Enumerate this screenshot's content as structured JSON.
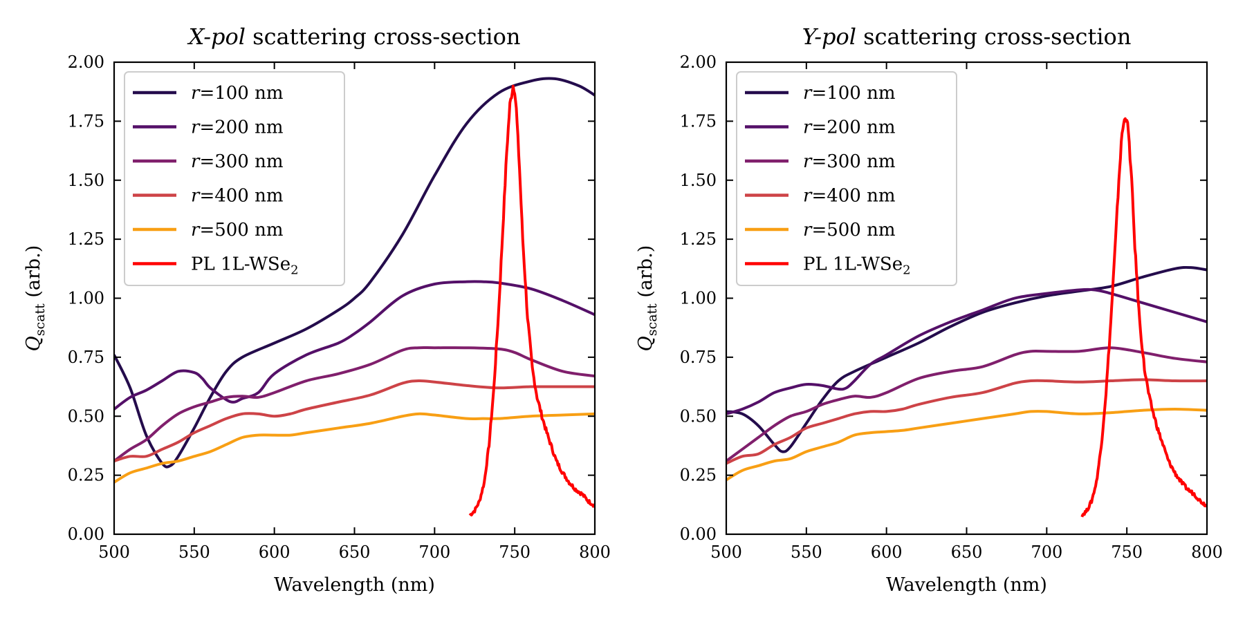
{
  "chart_data": [
    {
      "type": "line",
      "title_prefix": "X-pol",
      "title_rest": " scattering cross-section",
      "xlabel": "Wavelength (nm)",
      "ylabel": "Q_scatt (arb.)",
      "ylabel_symbol": "Q",
      "ylabel_sub": "scatt",
      "ylabel_rest": " (arb.)",
      "xlim": [
        500,
        800
      ],
      "ylim": [
        0,
        2.0
      ],
      "xticks": [
        500,
        550,
        600,
        650,
        700,
        750,
        800
      ],
      "yticks": [
        "0.00",
        "0.25",
        "0.50",
        "0.75",
        "1.00",
        "1.25",
        "1.50",
        "1.75",
        "2.00"
      ],
      "legend_position": "top-left",
      "series": [
        {
          "name": "r=100 nm",
          "legend_var": "r",
          "legend_rest": "=100 nm",
          "color": "#240c4c",
          "x": [
            500,
            510,
            520,
            530,
            535,
            540,
            550,
            560,
            570,
            580,
            600,
            620,
            640,
            650,
            660,
            680,
            700,
            720,
            740,
            760,
            775,
            790,
            800
          ],
          "y": [
            0.76,
            0.62,
            0.42,
            0.3,
            0.29,
            0.33,
            0.45,
            0.58,
            0.69,
            0.75,
            0.81,
            0.87,
            0.95,
            1.0,
            1.07,
            1.27,
            1.52,
            1.74,
            1.87,
            1.92,
            1.93,
            1.9,
            1.86
          ]
        },
        {
          "name": "r=200 nm",
          "legend_var": "r",
          "legend_rest": "=200 nm",
          "color": "#541068",
          "x": [
            500,
            510,
            520,
            530,
            540,
            550,
            555,
            560,
            570,
            575,
            580,
            590,
            600,
            620,
            640,
            650,
            660,
            680,
            700,
            720,
            730,
            740,
            760,
            780,
            800
          ],
          "y": [
            0.53,
            0.58,
            0.61,
            0.65,
            0.69,
            0.685,
            0.66,
            0.62,
            0.57,
            0.56,
            0.575,
            0.6,
            0.68,
            0.76,
            0.81,
            0.85,
            0.9,
            1.01,
            1.06,
            1.07,
            1.07,
            1.065,
            1.04,
            0.99,
            0.93
          ]
        },
        {
          "name": "r=300 nm",
          "legend_var": "r",
          "legend_rest": "=300 nm",
          "color": "#801f6c",
          "x": [
            500,
            510,
            520,
            530,
            540,
            550,
            560,
            570,
            580,
            590,
            600,
            620,
            640,
            660,
            680,
            690,
            700,
            720,
            740,
            750,
            760,
            780,
            800
          ],
          "y": [
            0.31,
            0.36,
            0.4,
            0.46,
            0.51,
            0.54,
            0.56,
            0.58,
            0.585,
            0.58,
            0.6,
            0.65,
            0.68,
            0.72,
            0.78,
            0.79,
            0.79,
            0.79,
            0.785,
            0.77,
            0.74,
            0.69,
            0.67
          ]
        },
        {
          "name": "r=400 nm",
          "legend_var": "r",
          "legend_rest": "=400 nm",
          "color": "#cd4347",
          "x": [
            500,
            510,
            520,
            530,
            540,
            550,
            560,
            570,
            580,
            590,
            600,
            610,
            620,
            640,
            660,
            680,
            690,
            700,
            720,
            740,
            760,
            780,
            800
          ],
          "y": [
            0.31,
            0.33,
            0.33,
            0.36,
            0.39,
            0.43,
            0.46,
            0.49,
            0.51,
            0.51,
            0.5,
            0.51,
            0.53,
            0.56,
            0.59,
            0.64,
            0.65,
            0.645,
            0.63,
            0.62,
            0.625,
            0.625,
            0.625
          ]
        },
        {
          "name": "r=500 nm",
          "legend_var": "r",
          "legend_rest": "=500 nm",
          "color": "#f89f14",
          "x": [
            500,
            510,
            520,
            530,
            540,
            550,
            560,
            570,
            580,
            590,
            600,
            610,
            620,
            640,
            660,
            680,
            690,
            700,
            720,
            730,
            740,
            760,
            780,
            800
          ],
          "y": [
            0.22,
            0.26,
            0.28,
            0.3,
            0.31,
            0.33,
            0.35,
            0.38,
            0.41,
            0.42,
            0.42,
            0.42,
            0.43,
            0.45,
            0.47,
            0.5,
            0.51,
            0.505,
            0.49,
            0.49,
            0.49,
            0.5,
            0.505,
            0.51
          ]
        },
        {
          "name": "PL 1L-WSe2",
          "legend_text": "PL 1L-WSe",
          "legend_sub": "2",
          "color": "#ff0000",
          "noisy": true,
          "x": [
            722,
            725,
            728,
            731,
            734,
            737,
            740,
            743,
            745,
            747,
            749,
            750,
            751,
            753,
            755,
            758,
            761,
            764,
            767,
            770,
            773,
            776,
            780,
            784,
            788,
            792,
            796,
            800
          ],
          "y": [
            0.08,
            0.1,
            0.14,
            0.22,
            0.38,
            0.62,
            0.95,
            1.35,
            1.62,
            1.82,
            1.9,
            1.88,
            1.8,
            1.55,
            1.25,
            0.92,
            0.7,
            0.58,
            0.5,
            0.43,
            0.37,
            0.31,
            0.26,
            0.22,
            0.19,
            0.17,
            0.14,
            0.12
          ]
        }
      ]
    },
    {
      "type": "line",
      "title_prefix": "Y-pol",
      "title_rest": " scattering cross-section",
      "xlabel": "Wavelength (nm)",
      "ylabel": "Q_scatt (arb.)",
      "ylabel_symbol": "Q",
      "ylabel_sub": "scatt",
      "ylabel_rest": " (arb.)",
      "xlim": [
        500,
        800
      ],
      "ylim": [
        0,
        2.0
      ],
      "xticks": [
        500,
        550,
        600,
        650,
        700,
        750,
        800
      ],
      "yticks": [
        "0.00",
        "0.25",
        "0.50",
        "0.75",
        "1.00",
        "1.25",
        "1.50",
        "1.75",
        "2.00"
      ],
      "legend_position": "top-left",
      "series": [
        {
          "name": "r=100 nm",
          "legend_var": "r",
          "legend_rest": "=100 nm",
          "color": "#240c4c",
          "x": [
            500,
            510,
            520,
            530,
            535,
            540,
            550,
            560,
            570,
            580,
            600,
            620,
            640,
            660,
            680,
            700,
            720,
            740,
            760,
            780,
            790,
            800
          ],
          "y": [
            0.52,
            0.51,
            0.46,
            0.38,
            0.35,
            0.37,
            0.47,
            0.57,
            0.65,
            0.69,
            0.75,
            0.81,
            0.88,
            0.94,
            0.98,
            1.01,
            1.03,
            1.05,
            1.09,
            1.125,
            1.13,
            1.12
          ]
        },
        {
          "name": "r=200 nm",
          "legend_var": "r",
          "legend_rest": "=200 nm",
          "color": "#541068",
          "x": [
            500,
            510,
            520,
            530,
            540,
            550,
            560,
            570,
            575,
            580,
            590,
            600,
            620,
            640,
            660,
            680,
            700,
            720,
            730,
            740,
            760,
            780,
            800
          ],
          "y": [
            0.51,
            0.53,
            0.56,
            0.6,
            0.62,
            0.635,
            0.63,
            0.615,
            0.62,
            0.65,
            0.72,
            0.76,
            0.84,
            0.9,
            0.95,
            1.0,
            1.02,
            1.035,
            1.035,
            1.02,
            0.98,
            0.94,
            0.9
          ]
        },
        {
          "name": "r=300 nm",
          "legend_var": "r",
          "legend_rest": "=300 nm",
          "color": "#801f6c",
          "x": [
            500,
            510,
            520,
            530,
            540,
            550,
            560,
            570,
            580,
            590,
            600,
            620,
            640,
            660,
            680,
            690,
            700,
            720,
            740,
            760,
            780,
            800
          ],
          "y": [
            0.31,
            0.36,
            0.41,
            0.46,
            0.5,
            0.52,
            0.55,
            0.57,
            0.585,
            0.58,
            0.6,
            0.66,
            0.69,
            0.71,
            0.76,
            0.775,
            0.775,
            0.775,
            0.79,
            0.77,
            0.745,
            0.73
          ]
        },
        {
          "name": "r=400 nm",
          "legend_var": "r",
          "legend_rest": "=400 nm",
          "color": "#cd4347",
          "x": [
            500,
            510,
            520,
            530,
            540,
            550,
            560,
            570,
            580,
            590,
            600,
            610,
            620,
            640,
            660,
            680,
            690,
            700,
            720,
            740,
            760,
            780,
            800
          ],
          "y": [
            0.3,
            0.33,
            0.34,
            0.38,
            0.41,
            0.45,
            0.47,
            0.49,
            0.51,
            0.52,
            0.52,
            0.53,
            0.55,
            0.58,
            0.6,
            0.64,
            0.65,
            0.65,
            0.645,
            0.65,
            0.655,
            0.65,
            0.65
          ]
        },
        {
          "name": "r=500 nm",
          "legend_var": "r",
          "legend_rest": "=500 nm",
          "color": "#f89f14",
          "x": [
            500,
            510,
            520,
            530,
            540,
            550,
            560,
            570,
            580,
            590,
            600,
            610,
            620,
            640,
            660,
            680,
            690,
            700,
            720,
            740,
            760,
            780,
            800
          ],
          "y": [
            0.23,
            0.27,
            0.29,
            0.31,
            0.32,
            0.35,
            0.37,
            0.39,
            0.42,
            0.43,
            0.435,
            0.44,
            0.45,
            0.47,
            0.49,
            0.51,
            0.52,
            0.52,
            0.51,
            0.515,
            0.525,
            0.53,
            0.525
          ]
        },
        {
          "name": "PL 1L-WSe2",
          "legend_text": "PL 1L-WSe",
          "legend_sub": "2",
          "color": "#ff0000",
          "noisy": true,
          "x": [
            722,
            725,
            728,
            731,
            734,
            737,
            740,
            743,
            745,
            747,
            749,
            750,
            751,
            753,
            755,
            758,
            761,
            764,
            767,
            770,
            773,
            776,
            780,
            784,
            788,
            792,
            796,
            800
          ],
          "y": [
            0.08,
            0.1,
            0.14,
            0.22,
            0.37,
            0.6,
            0.9,
            1.25,
            1.5,
            1.7,
            1.77,
            1.76,
            1.7,
            1.5,
            1.22,
            0.9,
            0.7,
            0.58,
            0.5,
            0.43,
            0.37,
            0.31,
            0.26,
            0.22,
            0.19,
            0.17,
            0.14,
            0.12
          ]
        }
      ]
    }
  ]
}
